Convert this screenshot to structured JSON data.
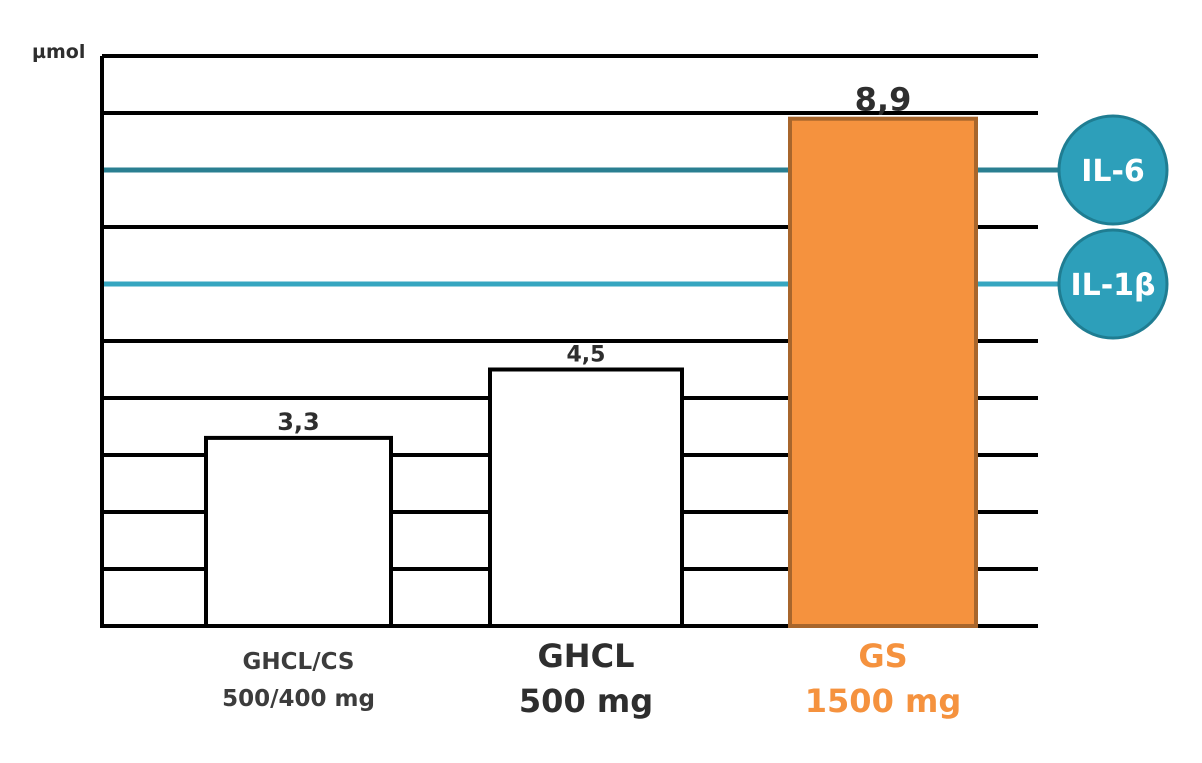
{
  "chart_data": {
    "type": "bar",
    "ylabel": "µmol",
    "ylim": [
      0,
      10
    ],
    "grid": true,
    "categories": [
      {
        "line1": "GHCL/CS",
        "line2": "500/400 mg"
      },
      {
        "line1": "GHCL",
        "line2": "500 mg"
      },
      {
        "line1": "GS",
        "line2": "1500 mg"
      }
    ],
    "values": [
      3.3,
      4.5,
      8.9
    ],
    "value_labels": [
      "3,3",
      "4,5",
      "8,9"
    ],
    "bar_fill": [
      "#ffffff",
      "#ffffff",
      "#f5923e"
    ],
    "bar_stroke": [
      "#000000",
      "#000000",
      "#a8662c"
    ],
    "category_colors": [
      "#3c3c3c",
      "#2e2e2e",
      "#f5923e"
    ],
    "markers": [
      {
        "label": "IL-6",
        "level": 8.0,
        "color": "#2a7f91"
      },
      {
        "label": "IL-1β",
        "level": 6.0,
        "color": "#36a6c0"
      }
    ]
  }
}
